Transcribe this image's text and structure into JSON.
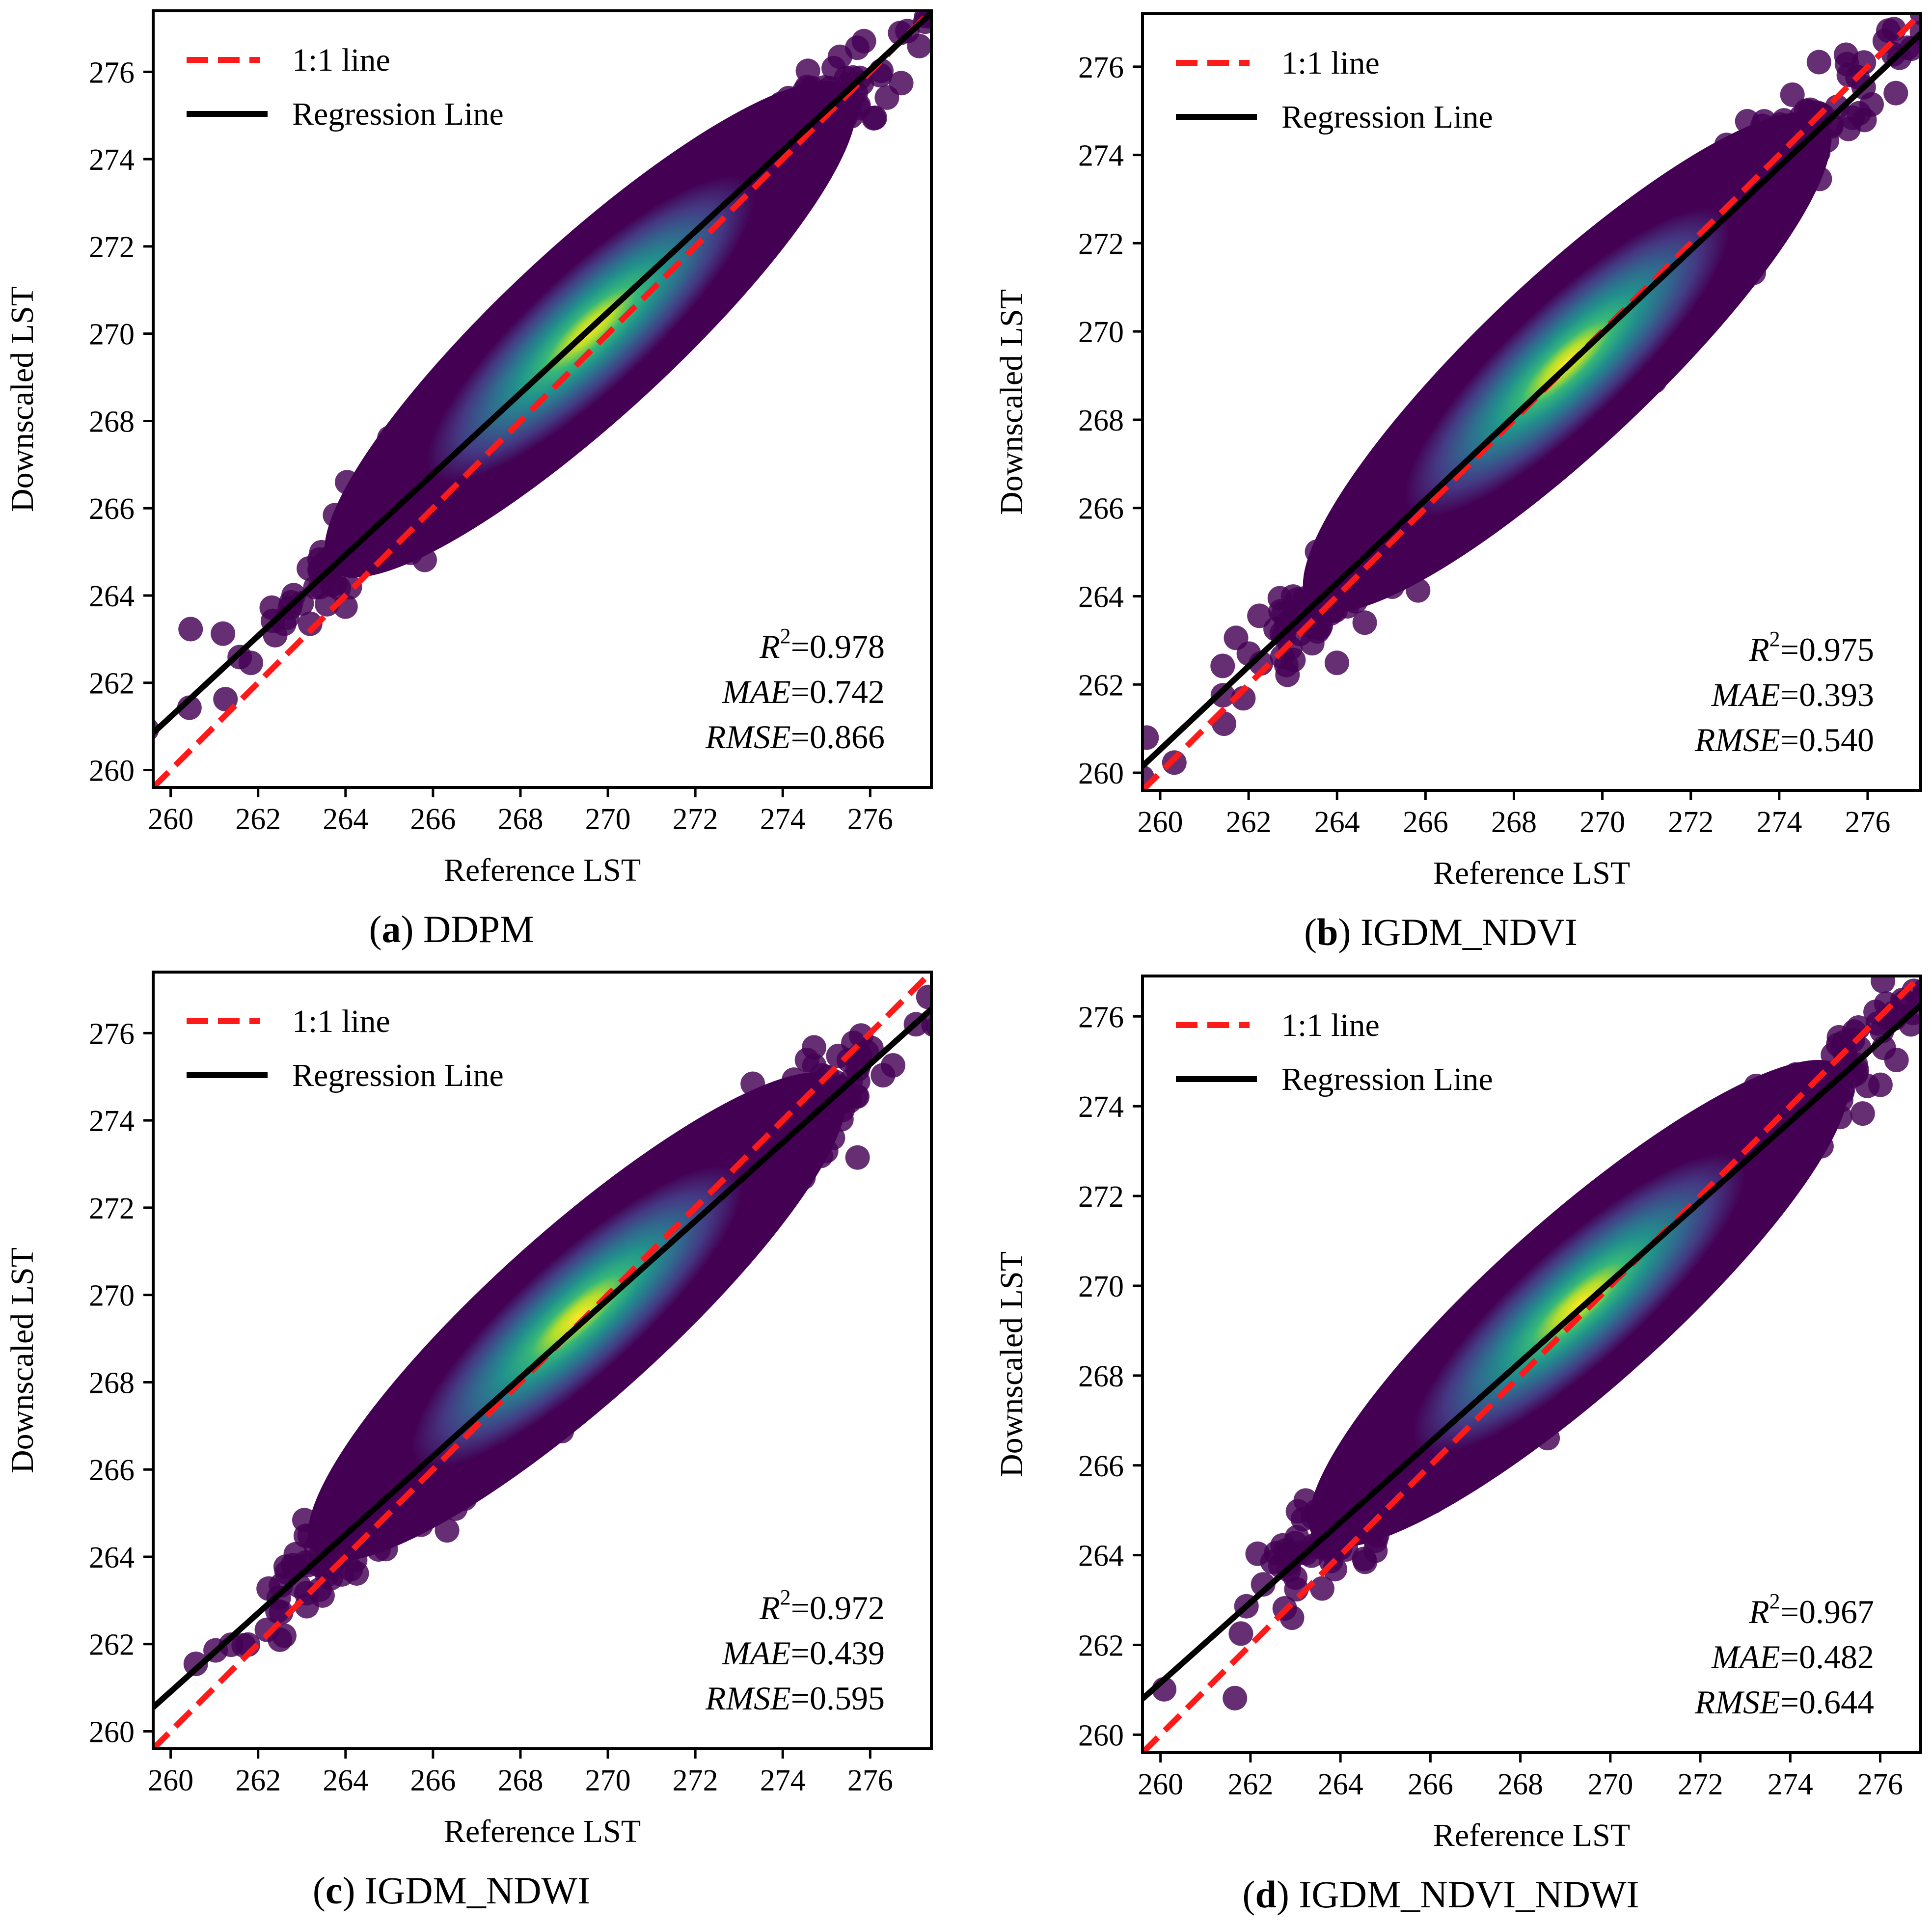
{
  "chart_data": [
    {
      "type": "scatter",
      "caption": {
        "letter": "a",
        "name": "DDPM"
      },
      "xlabel": "Reference LST",
      "ylabel": "Downscaled LST",
      "xlim": [
        259.6,
        277.4
      ],
      "ylim": [
        259.6,
        277.4
      ],
      "xticks": [
        260,
        262,
        264,
        266,
        268,
        270,
        272,
        274,
        276
      ],
      "yticks": [
        260,
        262,
        264,
        266,
        268,
        270,
        272,
        274,
        276
      ],
      "legend": {
        "position": "top-left",
        "entries": [
          "1:1 line",
          "Regression Line"
        ]
      },
      "identity_line": {
        "x": [
          259.6,
          277.4
        ],
        "y": [
          259.6,
          277.4
        ]
      },
      "regression_line": {
        "x": [
          259.6,
          277.4
        ],
        "y": [
          260.85,
          277.35
        ]
      },
      "density_center": [
        269.6,
        270.1
      ],
      "metrics": {
        "r2_label": "R",
        "r2_value": "0.978",
        "mae_label": "MAE",
        "mae_value": "0.742",
        "rmse_label": "RMSE",
        "rmse_value": "0.866"
      }
    },
    {
      "type": "scatter",
      "caption": {
        "letter": "b",
        "name": "IGDM_NDVI"
      },
      "xlabel": "Reference LST",
      "ylabel": "Downscaled LST",
      "xlim": [
        259.6,
        277.2
      ],
      "ylim": [
        259.6,
        277.2
      ],
      "xticks": [
        260,
        262,
        264,
        266,
        268,
        270,
        272,
        274,
        276
      ],
      "yticks": [
        260,
        262,
        264,
        266,
        268,
        270,
        272,
        274,
        276
      ],
      "legend": {
        "position": "top-left",
        "entries": [
          "1:1 line",
          "Regression Line"
        ]
      },
      "identity_line": {
        "x": [
          259.6,
          277.2
        ],
        "y": [
          259.6,
          277.2
        ]
      },
      "regression_line": {
        "x": [
          259.6,
          277.2
        ],
        "y": [
          260.15,
          276.75
        ]
      },
      "density_center": [
        269.2,
        269.3
      ],
      "metrics": {
        "r2_label": "R",
        "r2_value": "0.975",
        "mae_label": "MAE",
        "mae_value": "0.393",
        "rmse_label": "RMSE",
        "rmse_value": "0.540"
      }
    },
    {
      "type": "scatter",
      "caption": {
        "letter": "c",
        "name": "IGDM_NDWI"
      },
      "xlabel": "Reference LST",
      "ylabel": "Downscaled LST",
      "xlim": [
        259.6,
        277.4
      ],
      "ylim": [
        259.6,
        277.4
      ],
      "xticks": [
        260,
        262,
        264,
        266,
        268,
        270,
        272,
        274,
        276
      ],
      "yticks": [
        260,
        262,
        264,
        266,
        268,
        270,
        272,
        274,
        276
      ],
      "legend": {
        "position": "top-left",
        "entries": [
          "1:1 line",
          "Regression Line"
        ]
      },
      "identity_line": {
        "x": [
          259.6,
          277.4
        ],
        "y": [
          259.6,
          277.4
        ]
      },
      "regression_line": {
        "x": [
          259.6,
          277.4
        ],
        "y": [
          260.55,
          276.55
        ]
      },
      "density_center": [
        269.3,
        269.5
      ],
      "metrics": {
        "r2_label": "R",
        "r2_value": "0.972",
        "mae_label": "MAE",
        "mae_value": "0.439",
        "rmse_label": "RMSE",
        "rmse_value": "0.595"
      }
    },
    {
      "type": "scatter",
      "caption": {
        "letter": "d",
        "name": "IGDM_NDVI_NDWI"
      },
      "xlabel": "Reference LST",
      "ylabel": "Downscaled LST",
      "xlim": [
        259.6,
        276.9
      ],
      "ylim": [
        259.6,
        276.9
      ],
      "xticks": [
        260,
        262,
        264,
        266,
        268,
        270,
        272,
        274,
        276
      ],
      "yticks": [
        260,
        262,
        264,
        266,
        268,
        270,
        272,
        274,
        276
      ],
      "legend": {
        "position": "top-left",
        "entries": [
          "1:1 line",
          "Regression Line"
        ]
      },
      "identity_line": {
        "x": [
          259.6,
          276.9
        ],
        "y": [
          259.6,
          276.9
        ]
      },
      "regression_line": {
        "x": [
          259.6,
          276.9
        ],
        "y": [
          260.8,
          276.25
        ]
      },
      "density_center": [
        269.3,
        269.6
      ],
      "metrics": {
        "r2_label": "R",
        "r2_value": "0.967",
        "mae_label": "MAE",
        "mae_value": "0.482",
        "rmse_label": "RMSE",
        "rmse_value": "0.644"
      }
    }
  ],
  "colors": {
    "identity_line": "#ff1a1a",
    "regression_line": "#000000",
    "scatter_low": "#440154",
    "scatter_mid": "#21918c",
    "scatter_high": "#fde725"
  }
}
